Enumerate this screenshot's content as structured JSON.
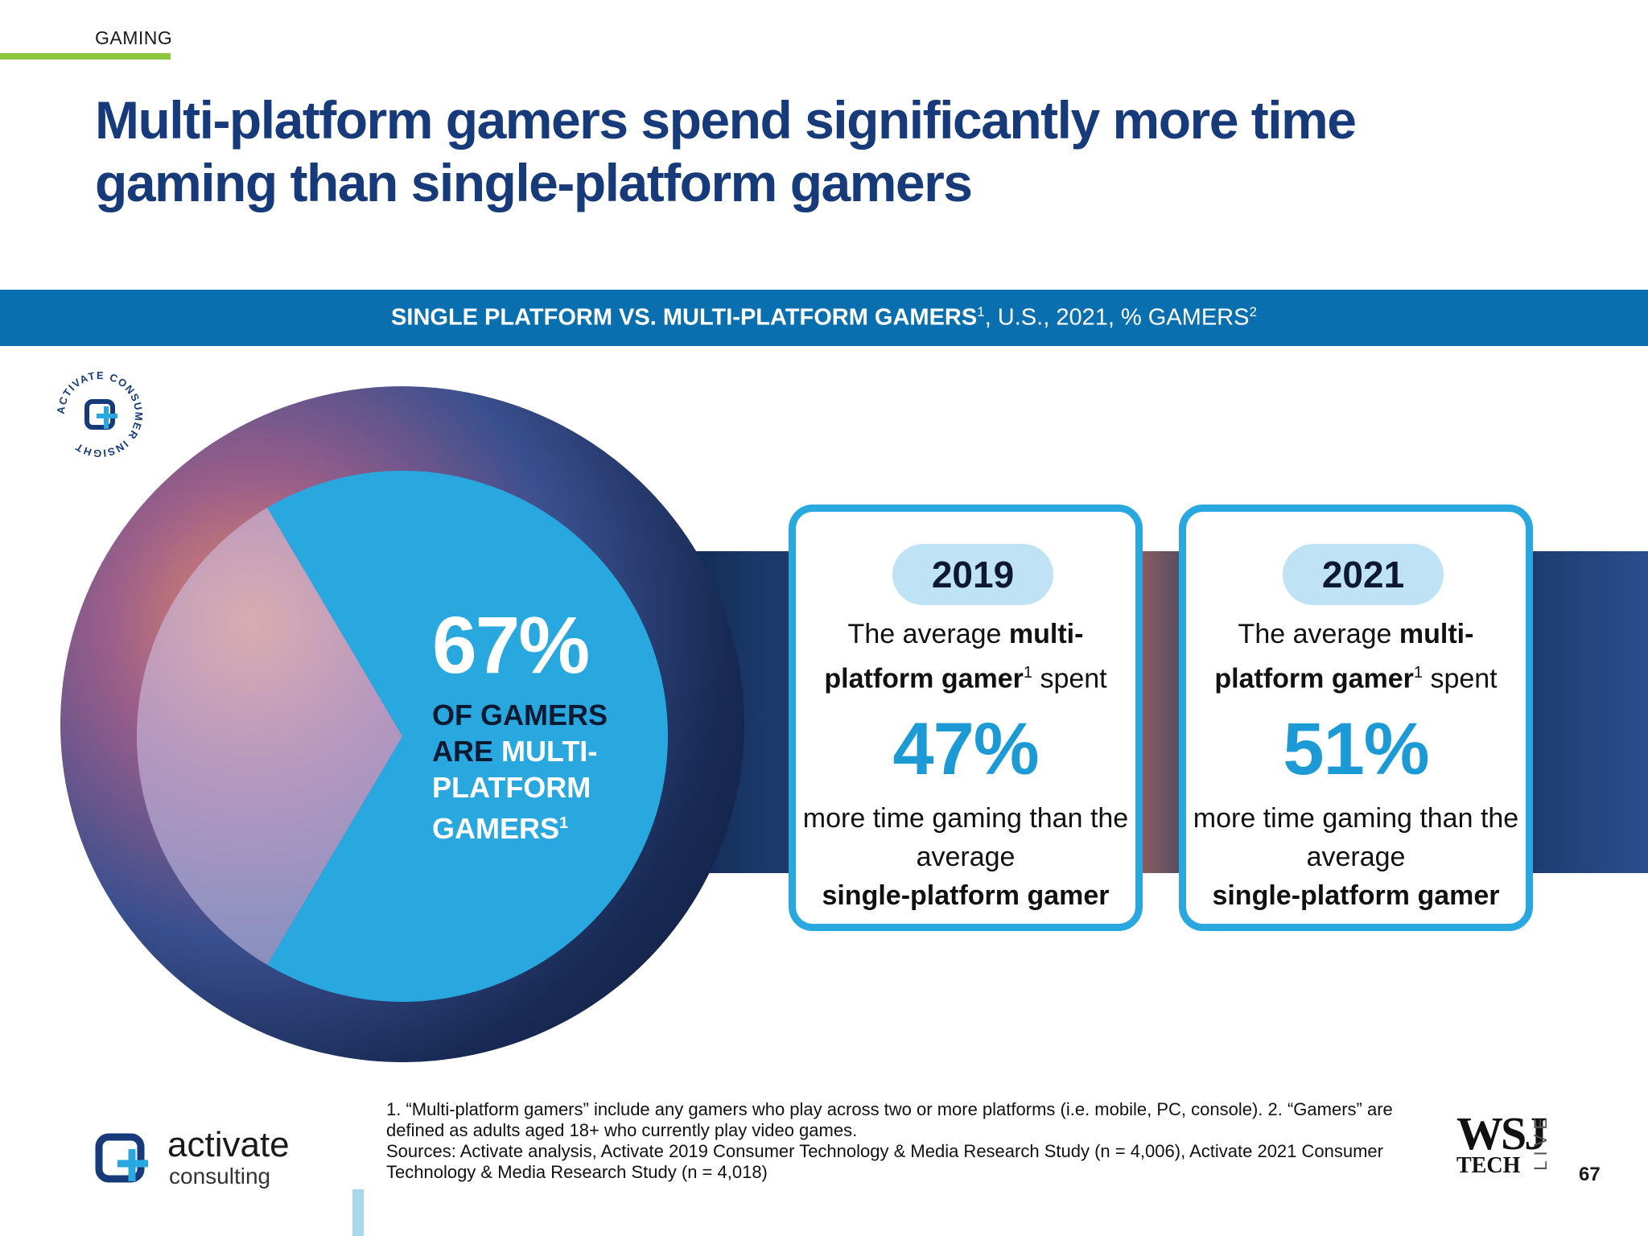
{
  "section": {
    "tag": "GAMING"
  },
  "headline": "Multi-platform gamers spend significantly more time gaming than single-platform gamers",
  "banner": {
    "bold": "SINGLE PLATFORM VS. MULTI-PLATFORM GAMERS",
    "bold_sup": "1",
    "regular": ", U.S., 2021, % GAMERS",
    "regular_sup": "2"
  },
  "badge": {
    "text": "ACTIVATE CONSUMER INSIGHT"
  },
  "chart_data": {
    "type": "pie",
    "categories": [
      "Multi-platform gamers",
      "Single-platform gamers"
    ],
    "values": [
      67,
      33
    ],
    "highlight": {
      "value": "67%",
      "line1": "OF GAMERS",
      "line2a": "ARE ",
      "line2b": "MULTI-",
      "line3": "PLATFORM",
      "line4": "GAMERS",
      "line4_sup": "1"
    },
    "colors": [
      "#29a8e0",
      "rgba(210,200,235,0.55)"
    ]
  },
  "cards": [
    {
      "year": "2019",
      "lead_a": "The average ",
      "lead_b": "multi-platform gamer",
      "lead_sup": "1",
      "lead_c": " spent",
      "pct": "47%",
      "tail_a": "more time gaming than the average",
      "tail_b": "single-platform gamer"
    },
    {
      "year": "2021",
      "lead_a": "The average ",
      "lead_b": "multi-platform gamer",
      "lead_sup": "1",
      "lead_c": " spent",
      "pct": "51%",
      "tail_a": "more time gaming than the average",
      "tail_b": "single-platform gamer"
    }
  ],
  "footer": {
    "logo_word": "activate",
    "logo_sub": "consulting",
    "note1": "1. “Multi-platform gamers” include any gamers who play across two or more platforms (i.e. mobile, PC, console).  2. “Gamers” are defined as adults aged 18+ who currently play video games.",
    "sources": "Sources: Activate analysis, Activate 2019 Consumer Technology & Media Research Study (n = 4,006), Activate 2021 Consumer Technology & Media Research Study (n = 4,018)",
    "wsj_main": "WSJ",
    "wsj_sub": "TECH",
    "wsj_live": "LIVE",
    "page_number": "67"
  },
  "colors": {
    "headline": "#163a7a",
    "banner": "#0a6fae",
    "accent": "#29a8e0",
    "section_rule": "#8dc63f"
  }
}
